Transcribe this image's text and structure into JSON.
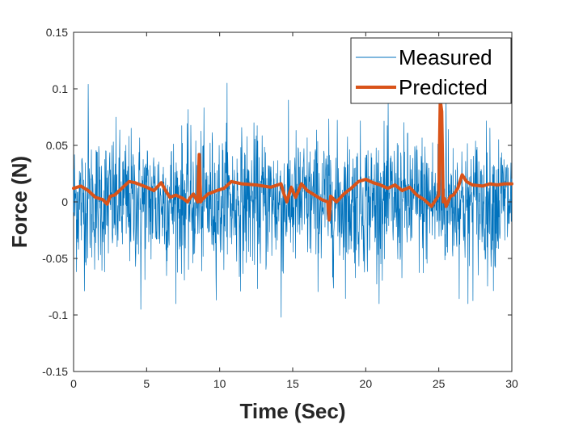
{
  "chart_data": {
    "type": "line",
    "title": "",
    "xlabel": "Time (Sec)",
    "ylabel": "Force (N)",
    "xlim": [
      0,
      30
    ],
    "ylim": [
      -0.15,
      0.15
    ],
    "xticks": [
      0,
      5,
      10,
      15,
      20,
      25,
      30
    ],
    "xtick_labels": [
      "0",
      "5",
      "10",
      "15",
      "20",
      "25",
      "30"
    ],
    "yticks": [
      -0.15,
      -0.1,
      -0.05,
      0,
      0.05,
      0.1,
      0.15
    ],
    "ytick_labels": [
      "-0.15",
      "-0.1",
      "-0.05",
      "0",
      "0.05",
      "0.1",
      "0.15"
    ],
    "grid": false,
    "legend_position": "top-right",
    "series": [
      {
        "name": "Measured",
        "color": "#0072BD",
        "style": "thin-line",
        "description_stats": {
          "n_points": 1500,
          "mean": 0.0,
          "std": 0.03,
          "min": -0.102,
          "max": 0.105
        },
        "peaks": [
          {
            "x": 1.0,
            "y": 0.104
          },
          {
            "x": 10.5,
            "y": 0.105
          },
          {
            "x": 14.2,
            "y": -0.102
          },
          {
            "x": 4.6,
            "y": -0.095
          },
          {
            "x": 25.5,
            "y": 0.1
          },
          {
            "x": 27.0,
            "y": -0.09
          }
        ]
      },
      {
        "name": "Predicted",
        "color": "#D95319",
        "style": "thick-line",
        "x": [
          0,
          0.5,
          1,
          1.5,
          2,
          2.3,
          2.5,
          2.8,
          3.3,
          3.8,
          4.2,
          5.0,
          5.5,
          6.0,
          6.3,
          6.6,
          7.0,
          7.5,
          7.8,
          8.0,
          8.2,
          8.5,
          8.6,
          8.7,
          8.8,
          9.2,
          9.8,
          10.3,
          10.8,
          11.5,
          12.5,
          13.5,
          14.2,
          14.4,
          14.6,
          14.9,
          15.2,
          15.6,
          16.0,
          16.5,
          17.0,
          17.4,
          17.5,
          17.6,
          18.0,
          18.5,
          19.0,
          19.5,
          20.0,
          20.5,
          21.0,
          21.5,
          22.0,
          22.5,
          23.0,
          23.5,
          24.0,
          24.5,
          24.8,
          25.0,
          25.1,
          25.2,
          25.3,
          25.4,
          25.5,
          25.8,
          26.0,
          26.3,
          26.6,
          26.9,
          27.3,
          28.0,
          28.5,
          29.0,
          29.5,
          30.0
        ],
        "y": [
          0.012,
          0.014,
          0.01,
          0.004,
          0.002,
          -0.002,
          0.005,
          0.006,
          0.012,
          0.018,
          0.017,
          0.013,
          0.01,
          0.017,
          0.01,
          0.004,
          0.006,
          0.003,
          0.0,
          0.004,
          0.007,
          0.0,
          0.042,
          0.0,
          0.002,
          0.007,
          0.01,
          0.012,
          0.018,
          0.016,
          0.015,
          0.013,
          0.016,
          0.007,
          0.0,
          0.013,
          0.004,
          0.016,
          0.01,
          0.006,
          0.002,
          0.0,
          -0.016,
          0.005,
          0.0,
          0.007,
          0.012,
          0.018,
          0.02,
          0.017,
          0.015,
          0.012,
          0.015,
          0.01,
          0.013,
          0.006,
          0.002,
          -0.004,
          0.002,
          0.006,
          0.09,
          0.08,
          0.0,
          0.003,
          -0.004,
          0.005,
          0.006,
          0.012,
          0.024,
          0.018,
          0.015,
          0.014,
          0.016,
          0.015,
          0.016,
          0.016
        ]
      }
    ]
  }
}
